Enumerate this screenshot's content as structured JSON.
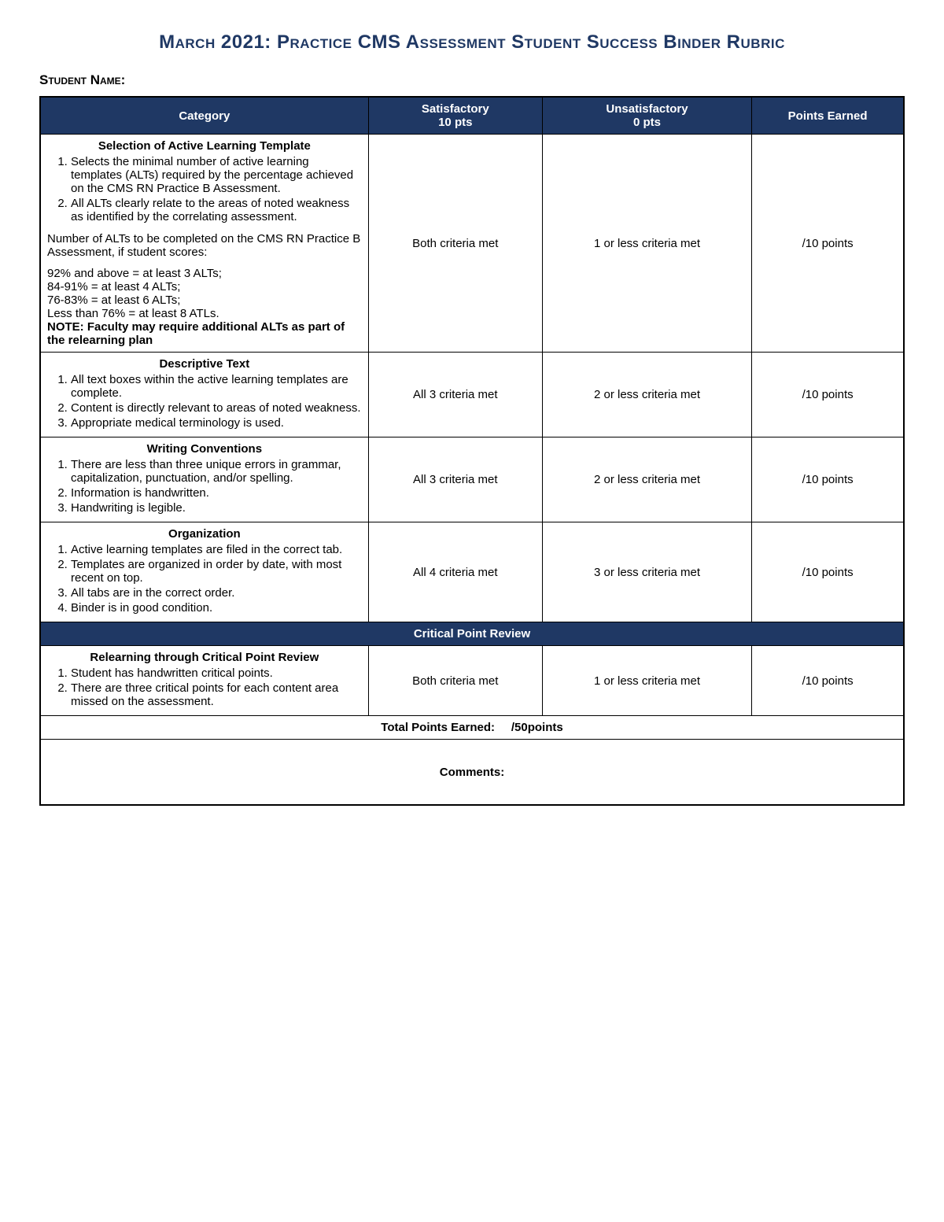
{
  "title": "March 2021: Practice CMS Assessment Student Success Binder Rubric",
  "student_name_label": "Student Name:",
  "headers": {
    "category": "Category",
    "satisfactory": "Satisfactory",
    "satisfactory_pts": "10 pts",
    "unsatisfactory": "Unsatisfactory",
    "unsatisfactory_pts": "0 pts",
    "points_earned": "Points Earned"
  },
  "rows": [
    {
      "title": "Selection of Active Learning Template",
      "items": [
        "Selects the minimal number of active learning templates (ALTs) required by the percentage achieved on the CMS RN Practice B Assessment.",
        "All ALTs clearly relate to the areas of noted weakness as identified by the correlating assessment."
      ],
      "extra_heading": "Number of ALTs to be completed on the CMS RN Practice B Assessment, if student scores:",
      "extra_lines": [
        "92% and above = at least 3 ALTs;",
        "84-91% = at least 4 ALTs;",
        "76-83% = at least 6 ALTs;",
        "Less than 76% = at least 8 ATLs."
      ],
      "note": "NOTE: Faculty may require additional ALTs as part of the relearning plan",
      "sat": "Both criteria met",
      "unsat": "1 or less criteria met",
      "points": "/10 points"
    },
    {
      "title": "Descriptive Text",
      "items": [
        "All text boxes within the active learning templates are complete.",
        "Content is directly relevant to areas of noted weakness.",
        "Appropriate medical terminology is used."
      ],
      "sat": "All 3 criteria met",
      "unsat": "2 or less criteria met",
      "points": "/10 points"
    },
    {
      "title": "Writing Conventions",
      "items": [
        "There are less than three unique errors in grammar, capitalization, punctuation, and/or spelling.",
        "Information is handwritten.",
        "Handwriting is legible."
      ],
      "sat": "All 3 criteria met",
      "unsat": "2 or less criteria met",
      "points": "/10 points"
    },
    {
      "title": "Organization",
      "items": [
        "Active learning templates are filed in the correct tab.",
        "Templates are organized in order by date, with most recent on top.",
        "All tabs are in the correct order.",
        "Binder is in good condition."
      ],
      "sat": "All 4 criteria met",
      "unsat": "3 or less criteria met",
      "points": "/10 points"
    }
  ],
  "divider": "Critical Point Review",
  "critical_row": {
    "title": "Relearning through Critical Point Review",
    "items": [
      "Student has handwritten critical points.",
      "There are three critical points for each content area missed on the assessment."
    ],
    "sat": "Both criteria met",
    "unsat": "1 or less criteria met",
    "points": "/10 points"
  },
  "total_label": "Total Points Earned:",
  "total_value": "/50points",
  "comments_label": "Comments:"
}
